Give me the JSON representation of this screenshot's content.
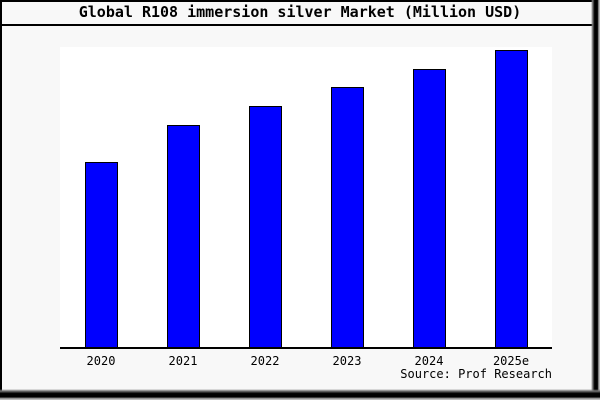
{
  "chart": {
    "title": "Global R108 immersion silver Market (Million USD)",
    "source": "Source: Prof Research"
  },
  "chart_data": {
    "type": "bar",
    "categories": [
      "2020",
      "2021",
      "2022",
      "2023",
      "2024",
      "2025e"
    ],
    "values": [
      62.4,
      74.8,
      81.2,
      87.6,
      93.6,
      100
    ],
    "title": "Global R108 immersion silver Market (Million USD)",
    "xlabel": "",
    "ylabel": "",
    "ylim": [
      0,
      101
    ],
    "y_axis_visible": false,
    "gridlines": false,
    "legend": "none",
    "annotation": "Source: Prof Research",
    "note": "No y-axis scale shown; values are relative bar heights with the tallest bar (2025e) = 100."
  },
  "colors": {
    "background": "#f8f8f8",
    "plot_background": "#ffffff",
    "bar_fill": "#0000ff",
    "bar_border": "#000000",
    "text": "#000000",
    "frame_border": "#000000"
  }
}
